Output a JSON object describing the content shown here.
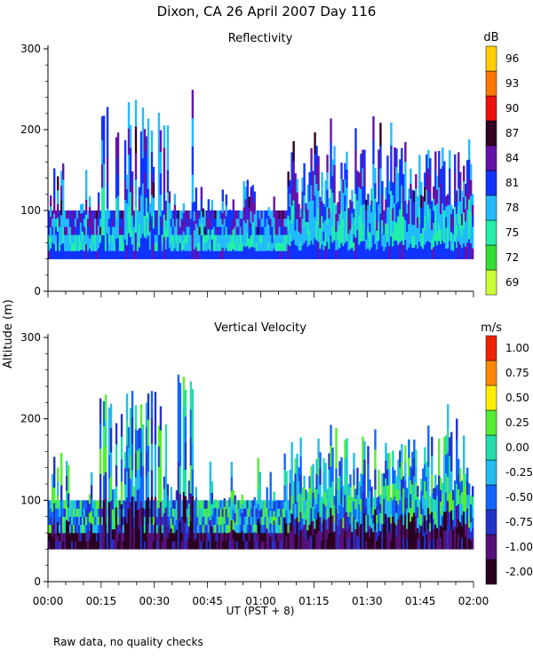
{
  "page": {
    "title": "Dixon, CA 26 April 2007  Day 116",
    "shared_ylabel": "Altitude (m)",
    "shared_xlabel": "UT  (PST + 8)",
    "footnote": "Raw data, no quality checks"
  },
  "chart_data": [
    {
      "type": "heatmap",
      "title": "Reflectivity",
      "colorbar_unit": "dB",
      "colorbar_ticks": [
        "69",
        "72",
        "75",
        "78",
        "81",
        "84",
        "87",
        "90",
        "93",
        "96"
      ],
      "colorbar_colors": [
        "#ccff33",
        "#33dd33",
        "#22eeaa",
        "#22bbff",
        "#1133ff",
        "#6611aa",
        "#330022",
        "#ee1111",
        "#ff7700",
        "#ffcc00"
      ],
      "y_ticks": [
        "0",
        "100",
        "200",
        "300"
      ],
      "ylim": [
        0,
        300
      ],
      "xlim": [
        "00:00",
        "02:00"
      ],
      "series_extent": {
        "alt_min": 40,
        "alt_max_early": 100,
        "alt_max_late": 180
      }
    },
    {
      "type": "heatmap",
      "title": "Vertical Velocity",
      "colorbar_unit": "m/s",
      "colorbar_ticks": [
        "-2.00",
        "-1.00",
        "-0.75",
        "-0.50",
        "-0.25",
        "0.00",
        "0.25",
        "0.50",
        "0.75",
        "1.00"
      ],
      "colorbar_colors": [
        "#2a0020",
        "#55117a",
        "#2233cc",
        "#1166ff",
        "#22bbee",
        "#22ddaa",
        "#55ee33",
        "#ffee00",
        "#ff8800",
        "#ee2200"
      ],
      "y_ticks": [
        "0",
        "100",
        "200",
        "300"
      ],
      "ylim": [
        0,
        300
      ],
      "xlim": [
        "00:00",
        "02:00"
      ],
      "x_ticks": [
        "00:00",
        "00:15",
        "00:30",
        "00:45",
        "01:00",
        "01:15",
        "01:30",
        "01:45",
        "02:00"
      ],
      "series_extent": {
        "alt_min": 40,
        "alt_max_early": 100,
        "alt_max_late": 180
      }
    }
  ]
}
